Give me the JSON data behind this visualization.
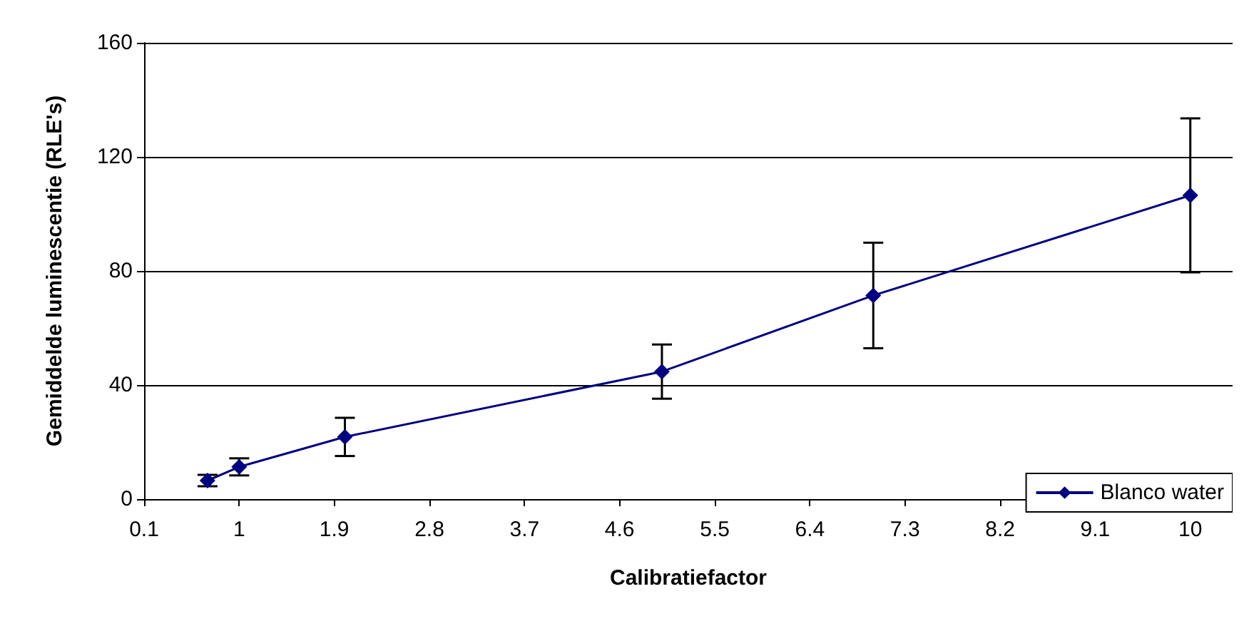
{
  "chart_data": {
    "type": "line",
    "xlabel": "Calibratiefactor",
    "ylabel": "Gemiddelde luminescentie (RLE's)",
    "x": [
      0.7,
      1,
      2,
      5,
      7,
      10
    ],
    "series": [
      {
        "name": "Blanco water",
        "color": "#000080",
        "values": [
          6.5,
          11.3,
          21.8,
          44.7,
          71.4,
          106.5
        ],
        "errors": [
          2,
          3,
          6.7,
          9.5,
          18.5,
          27
        ]
      }
    ],
    "xlim": [
      0.1,
      10.4
    ],
    "xticks": [
      0.1,
      1,
      1.9,
      2.8,
      3.7,
      4.6,
      5.5,
      6.4,
      7.3,
      8.2,
      9.1,
      10
    ],
    "ylim": [
      0,
      160
    ],
    "yticks": [
      0,
      40,
      80,
      120,
      160
    ],
    "grid": "y",
    "legend": "bottom right",
    "marker": "diamond",
    "line_style": "solid"
  }
}
